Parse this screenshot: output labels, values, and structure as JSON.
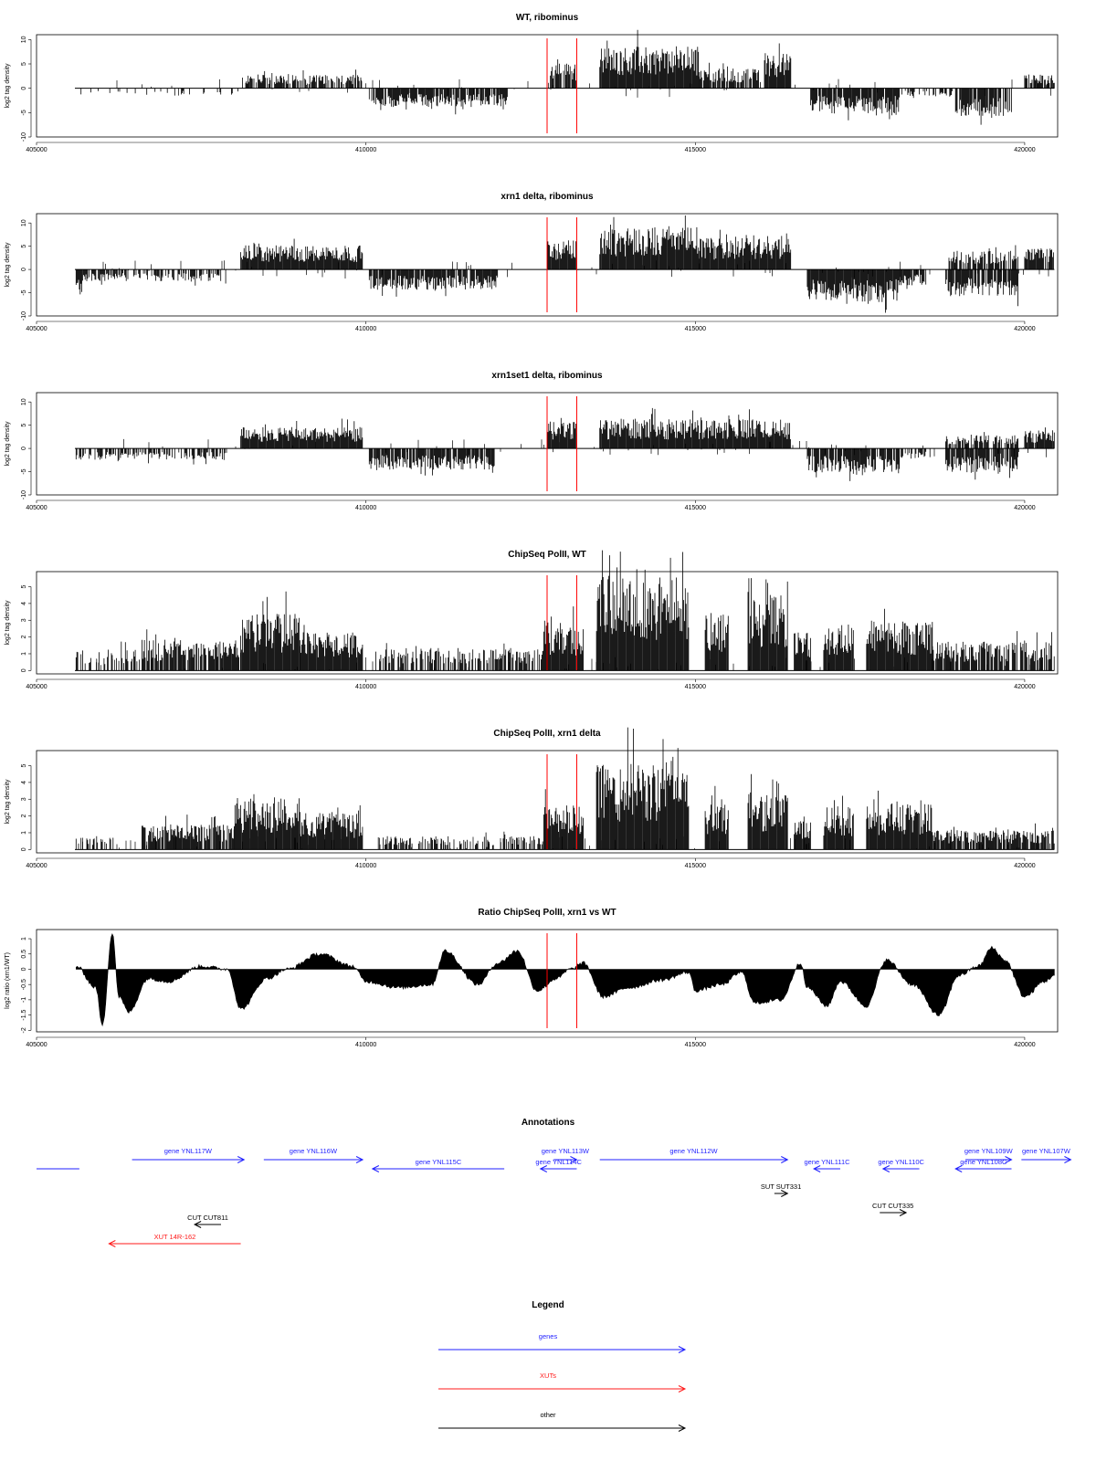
{
  "colors": {
    "gene": "#1f1fff",
    "xut": "#ff1a1a",
    "other": "#000000",
    "marker": "#ff0000",
    "signal": "#000000"
  },
  "chart_data": [
    {
      "type": "bar",
      "title": "WT, ribominus",
      "ylabel": "log2 tag density",
      "xlim": [
        405000,
        420500
      ],
      "ylim": [
        -10,
        11
      ],
      "yticks": [
        -10,
        -5,
        0,
        5,
        10
      ],
      "xticks": [
        405000,
        410000,
        415000,
        420000
      ],
      "markers": [
        412750,
        413200
      ],
      "segments": [
        {
          "x": [
            405600,
            408100
          ],
          "level": -1.2,
          "fill": 0.18
        },
        {
          "x": [
            408100,
            409950
          ],
          "level": 2.4,
          "fill": 0.75
        },
        {
          "x": [
            410050,
            412150
          ],
          "level": -3.4,
          "fill": 0.85
        },
        {
          "x": [
            412750,
            413200
          ],
          "level": 4.5,
          "fill": 0.85
        },
        {
          "x": [
            413550,
            415050
          ],
          "level": 7.5,
          "fill": 1.0
        },
        {
          "x": [
            415050,
            416000
          ],
          "level": 3.5,
          "fill": 0.8
        },
        {
          "x": [
            416050,
            416450
          ],
          "level": 6.5,
          "fill": 1.0
        },
        {
          "x": [
            416750,
            418100
          ],
          "level": -4.5,
          "fill": 0.9
        },
        {
          "x": [
            418100,
            418900
          ],
          "level": -1.5,
          "fill": 0.4
        },
        {
          "x": [
            418950,
            419800
          ],
          "level": -5,
          "fill": 0.9
        },
        {
          "x": [
            420000,
            420450
          ],
          "level": 2.5,
          "fill": 0.8
        }
      ]
    },
    {
      "type": "bar",
      "title": "xrn1 delta, ribominus",
      "ylabel": "log2 tag density",
      "xlim": [
        405000,
        420500
      ],
      "ylim": [
        -10,
        12
      ],
      "yticks": [
        -10,
        -5,
        0,
        5,
        10
      ],
      "xticks": [
        405000,
        410000,
        415000,
        420000
      ],
      "markers": [
        412750,
        413200
      ],
      "segments": [
        {
          "x": [
            405600,
            405700
          ],
          "level": -5,
          "fill": 1.0
        },
        {
          "x": [
            405700,
            407900
          ],
          "level": -2.2,
          "fill": 0.6
        },
        {
          "x": [
            408100,
            409950
          ],
          "level": 4.5,
          "fill": 1.0
        },
        {
          "x": [
            410050,
            412000
          ],
          "level": -3.8,
          "fill": 0.9
        },
        {
          "x": [
            412750,
            413200
          ],
          "level": 5.5,
          "fill": 1.0
        },
        {
          "x": [
            413550,
            415050
          ],
          "level": 8,
          "fill": 1.0
        },
        {
          "x": [
            415050,
            416450
          ],
          "level": 6,
          "fill": 1.0
        },
        {
          "x": [
            416700,
            418100
          ],
          "level": -6,
          "fill": 1.0
        },
        {
          "x": [
            418100,
            418500
          ],
          "level": -3,
          "fill": 0.9
        },
        {
          "x": [
            418800,
            419900
          ],
          "level": -5,
          "fill": 0.9
        },
        {
          "x": [
            418800,
            419900
          ],
          "level": 3.5,
          "fill": 0.8
        },
        {
          "x": [
            420000,
            420450
          ],
          "level": 4,
          "fill": 0.9
        }
      ]
    },
    {
      "type": "bar",
      "title": "xrn1set1 delta, ribominus",
      "ylabel": "log2 tag density",
      "xlim": [
        405000,
        420500
      ],
      "ylim": [
        -10,
        12
      ],
      "yticks": [
        -10,
        -5,
        0,
        5,
        10
      ],
      "xticks": [
        405000,
        410000,
        415000,
        420000
      ],
      "markers": [
        412750,
        413200
      ],
      "segments": [
        {
          "x": [
            405600,
            407900
          ],
          "level": -2.2,
          "fill": 0.55
        },
        {
          "x": [
            408100,
            409950
          ],
          "level": 4,
          "fill": 1.0
        },
        {
          "x": [
            410050,
            411950
          ],
          "level": -4,
          "fill": 0.9
        },
        {
          "x": [
            412750,
            413200
          ],
          "level": 5,
          "fill": 1.0
        },
        {
          "x": [
            413550,
            416450
          ],
          "level": 5.5,
          "fill": 1.0
        },
        {
          "x": [
            416700,
            418100
          ],
          "level": -4.5,
          "fill": 0.9
        },
        {
          "x": [
            418100,
            418600
          ],
          "level": -2,
          "fill": 0.5
        },
        {
          "x": [
            418800,
            419900
          ],
          "level": -4.5,
          "fill": 0.9
        },
        {
          "x": [
            418800,
            419900
          ],
          "level": 2.5,
          "fill": 0.7
        },
        {
          "x": [
            420000,
            420450
          ],
          "level": 3.5,
          "fill": 0.9
        }
      ]
    },
    {
      "type": "bar",
      "title": "ChipSeq PolII, WT",
      "ylabel": "log2 tag density",
      "xlim": [
        405000,
        420500
      ],
      "ylim": [
        -0.2,
        5.9
      ],
      "yticks": [
        0,
        1,
        2,
        3,
        4,
        5
      ],
      "xticks": [
        405000,
        410000,
        415000,
        420000
      ],
      "markers": [
        412750,
        413200
      ],
      "segments": [
        {
          "x": [
            405600,
            406600
          ],
          "level": 1.1,
          "fill": 0.45
        },
        {
          "x": [
            406600,
            408100
          ],
          "level": 1.6,
          "fill": 0.85
        },
        {
          "x": [
            408100,
            409000
          ],
          "level": 3.0,
          "fill": 1.0
        },
        {
          "x": [
            409000,
            409950
          ],
          "level": 2.0,
          "fill": 1.0
        },
        {
          "x": [
            410150,
            412700
          ],
          "level": 1.2,
          "fill": 0.55
        },
        {
          "x": [
            412700,
            413300
          ],
          "level": 2.5,
          "fill": 1.0
        },
        {
          "x": [
            413500,
            414900
          ],
          "level": 5.0,
          "fill": 1.0
        },
        {
          "x": [
            415150,
            415500
          ],
          "level": 3.0,
          "fill": 1.0
        },
        {
          "x": [
            415800,
            416400
          ],
          "level": 4.0,
          "fill": 1.0
        },
        {
          "x": [
            416500,
            416750
          ],
          "level": 2.0,
          "fill": 1.0
        },
        {
          "x": [
            416950,
            417400
          ],
          "level": 2.4,
          "fill": 1.0
        },
        {
          "x": [
            417600,
            418600
          ],
          "level": 2.6,
          "fill": 1.0
        },
        {
          "x": [
            418600,
            420450
          ],
          "level": 1.5,
          "fill": 0.8
        }
      ]
    },
    {
      "type": "bar",
      "title": "ChipSeq PolII, xrn1 delta",
      "ylabel": "log2 tag density",
      "xlim": [
        405000,
        420500
      ],
      "ylim": [
        -0.2,
        5.9
      ],
      "yticks": [
        0,
        1,
        2,
        3,
        4,
        5
      ],
      "xticks": [
        405000,
        410000,
        415000,
        420000
      ],
      "markers": [
        412750,
        413200
      ],
      "segments": [
        {
          "x": [
            405600,
            406200
          ],
          "level": 0.7,
          "fill": 0.3
        },
        {
          "x": [
            406600,
            408000
          ],
          "level": 1.3,
          "fill": 0.9
        },
        {
          "x": [
            408000,
            409000
          ],
          "level": 2.7,
          "fill": 1.0
        },
        {
          "x": [
            409000,
            409950
          ],
          "level": 1.9,
          "fill": 1.0
        },
        {
          "x": [
            410150,
            412700
          ],
          "level": 0.7,
          "fill": 0.45
        },
        {
          "x": [
            412700,
            413300
          ],
          "level": 2.3,
          "fill": 1.0
        },
        {
          "x": [
            413500,
            414900
          ],
          "level": 4.6,
          "fill": 1.0
        },
        {
          "x": [
            415150,
            415500
          ],
          "level": 2.4,
          "fill": 1.0
        },
        {
          "x": [
            415800,
            416400
          ],
          "level": 3.0,
          "fill": 1.0
        },
        {
          "x": [
            416500,
            416750
          ],
          "level": 1.5,
          "fill": 1.0
        },
        {
          "x": [
            416950,
            417400
          ],
          "level": 2.2,
          "fill": 1.0
        },
        {
          "x": [
            417600,
            418600
          ],
          "level": 2.4,
          "fill": 1.0
        },
        {
          "x": [
            418600,
            420450
          ],
          "level": 1.0,
          "fill": 0.8
        }
      ]
    },
    {
      "type": "area",
      "title": "Ratio ChipSeq PolII, xrn1 vs WT",
      "ylabel": "log2 ratio (xrn1/WT)",
      "xlim": [
        405000,
        420500
      ],
      "ylim": [
        -2.05,
        1.3
      ],
      "yticks": [
        -2.0,
        -1.5,
        -1.0,
        -0.5,
        0.0,
        0.5,
        1.0
      ],
      "xticks": [
        405000,
        410000,
        415000,
        420000
      ],
      "markers": [
        412750,
        413200
      ],
      "x": [
        405600,
        405900,
        406000,
        406150,
        406250,
        406400,
        406700,
        407000,
        407500,
        407900,
        408100,
        408500,
        408800,
        409300,
        409800,
        410000,
        410500,
        411000,
        411200,
        411700,
        412000,
        412300,
        412600,
        412900,
        413100,
        413300,
        413600,
        414000,
        414500,
        414900,
        415000,
        415400,
        415700,
        415900,
        416300,
        416600,
        416700,
        417000,
        417200,
        417600,
        417900,
        418300,
        418700,
        419000,
        419300,
        419500,
        419700,
        420000,
        420300,
        420450
      ],
      "y": [
        0.1,
        -0.6,
        -1.85,
        1.2,
        -0.9,
        -1.4,
        -0.3,
        -0.4,
        0.1,
        0.0,
        -1.3,
        -0.3,
        0.0,
        0.5,
        0.1,
        -0.4,
        -0.6,
        -0.5,
        0.6,
        -0.5,
        0.2,
        0.6,
        -0.7,
        -0.3,
        0.0,
        0.2,
        -0.9,
        -0.6,
        -0.35,
        -0.1,
        -0.7,
        -0.5,
        -0.1,
        -1.1,
        -1.0,
        0.2,
        -0.6,
        -1.2,
        -0.4,
        -1.2,
        0.3,
        -0.5,
        -1.5,
        -0.2,
        0.1,
        0.7,
        0.3,
        -0.9,
        -0.4,
        -0.2
      ]
    }
  ],
  "annotations": {
    "title": "Annotations",
    "items": [
      {
        "label": "",
        "kind": "gene",
        "start": 405000,
        "end": 405650,
        "dir": "none",
        "row": 0
      },
      {
        "label": "gene YNL117W",
        "kind": "gene",
        "start": 406450,
        "end": 408150,
        "dir": "right",
        "row": -1
      },
      {
        "label": "gene YNL116W",
        "kind": "gene",
        "start": 408450,
        "end": 409950,
        "dir": "right",
        "row": -1
      },
      {
        "label": "gene YNL115C",
        "kind": "gene",
        "start": 410100,
        "end": 412100,
        "dir": "left",
        "row": 0
      },
      {
        "label": "gene YNL113W",
        "kind": "gene",
        "start": 412850,
        "end": 413200,
        "dir": "right",
        "row": -1
      },
      {
        "label": "gene YNL114C",
        "kind": "gene",
        "start": 412650,
        "end": 413200,
        "dir": "left",
        "row": 0
      },
      {
        "label": "gene YNL112W",
        "kind": "gene",
        "start": 413550,
        "end": 416400,
        "dir": "right",
        "row": -1
      },
      {
        "label": "gene YNL111C",
        "kind": "gene",
        "start": 416800,
        "end": 417200,
        "dir": "left",
        "row": 0
      },
      {
        "label": "gene YNL110C",
        "kind": "gene",
        "start": 417850,
        "end": 418400,
        "dir": "left",
        "row": 0
      },
      {
        "label": "gene YNL109W",
        "kind": "gene",
        "start": 419100,
        "end": 419800,
        "dir": "right",
        "row": -1
      },
      {
        "label": "gene YNL108C",
        "kind": "gene",
        "start": 418950,
        "end": 419800,
        "dir": "left",
        "row": 0
      },
      {
        "label": "gene YNL107W",
        "kind": "gene",
        "start": 419950,
        "end": 420700,
        "dir": "right",
        "row": -1
      },
      {
        "label": "SUT SUT331",
        "kind": "other",
        "start": 416200,
        "end": 416400,
        "dir": "right",
        "row": 2
      },
      {
        "label": "CUT CUT335",
        "kind": "other",
        "start": 417800,
        "end": 418200,
        "dir": "right",
        "row": 3
      },
      {
        "label": "CUT CUT811",
        "kind": "other",
        "start": 407400,
        "end": 407800,
        "dir": "left",
        "row": 4
      },
      {
        "label": "XUT 14R-162",
        "kind": "xut",
        "start": 406100,
        "end": 408100,
        "dir": "left",
        "row": 5
      }
    ]
  },
  "legend": {
    "title": "Legend",
    "items": [
      {
        "label": "genes",
        "kind": "gene"
      },
      {
        "label": "XUTs",
        "kind": "xut"
      },
      {
        "label": "other",
        "kind": "other"
      }
    ]
  }
}
